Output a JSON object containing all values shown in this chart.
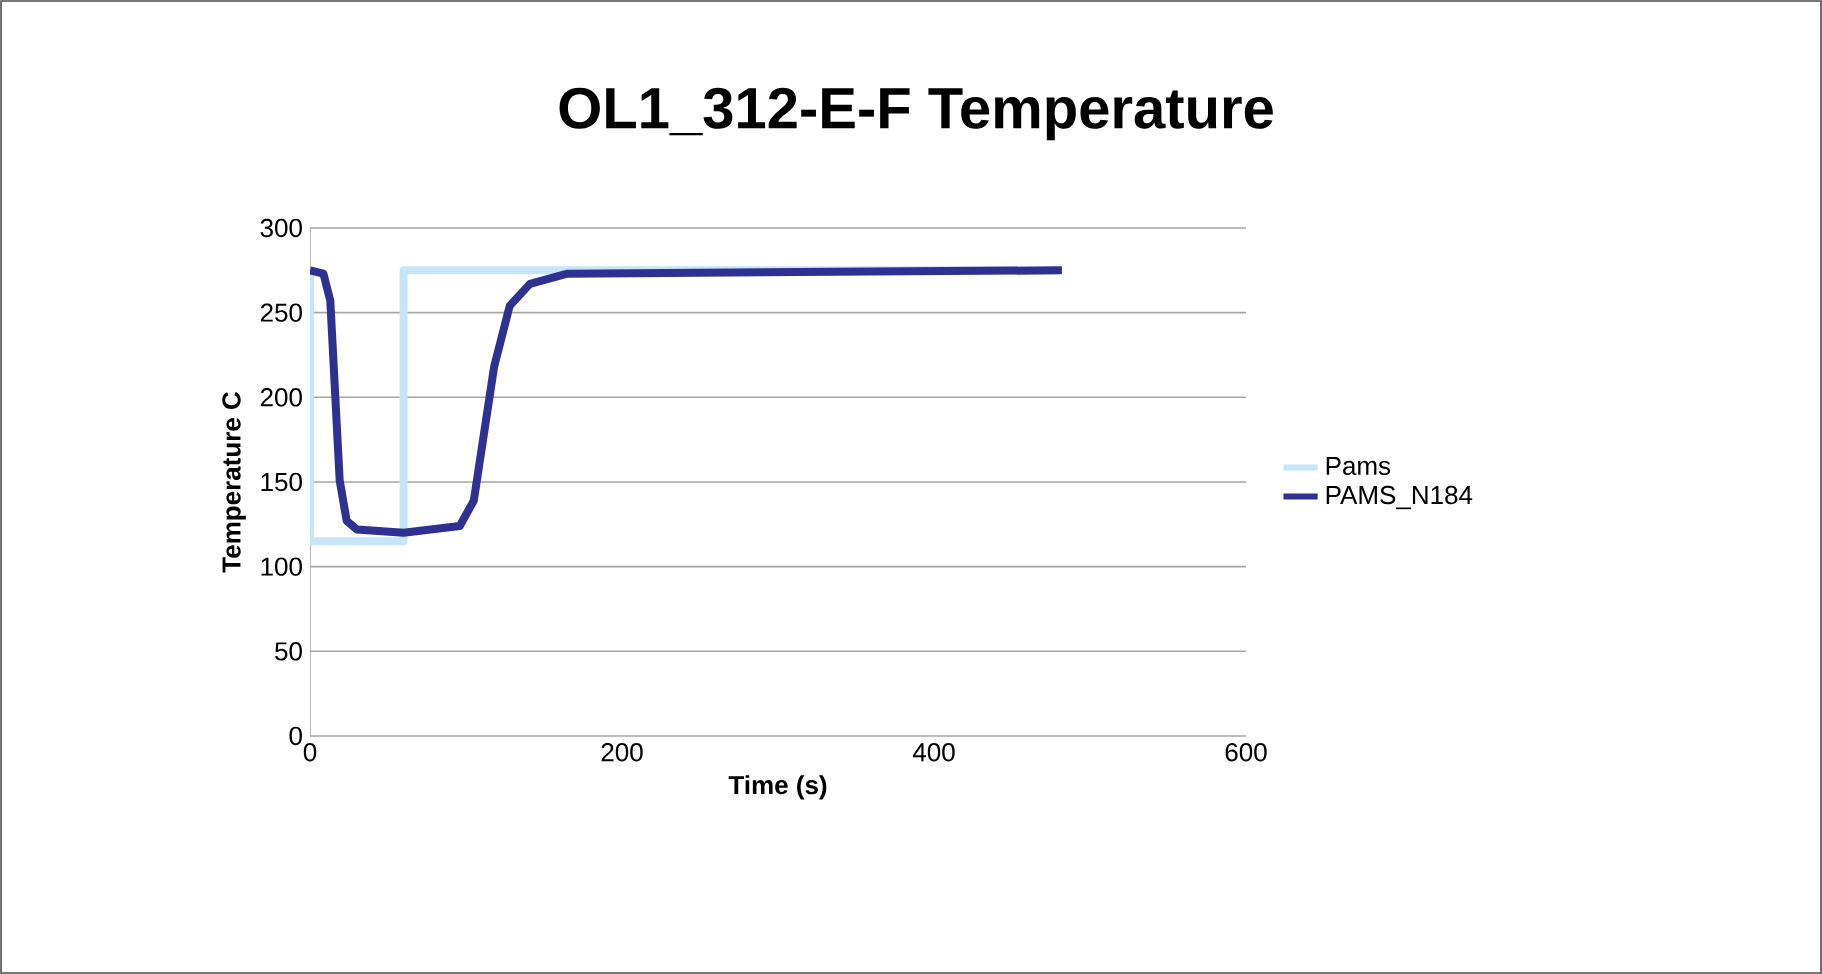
{
  "chart_data": {
    "type": "line",
    "title": "OL1_312-E-F Temperature",
    "xlabel": "Time (s)",
    "ylabel": "Temperature C",
    "xlim": [
      0,
      600
    ],
    "xticks": [
      0,
      200,
      400,
      600
    ],
    "ylim": [
      0,
      300
    ],
    "yticks": [
      0,
      50,
      100,
      150,
      200,
      250,
      300
    ],
    "grid": "y",
    "legend": "right",
    "series": [
      {
        "name": "Pams",
        "color": "#c6e6f8",
        "x": [
          0,
          0,
          60,
          60,
          480
        ],
        "values": [
          275,
          115,
          115,
          275,
          275
        ]
      },
      {
        "name": "PAMS_N184",
        "color": "#2e3192",
        "x": [
          0,
          8.6,
          13,
          19,
          23.5,
          30,
          60,
          96,
          105,
          118,
          128,
          141,
          165,
          482
        ],
        "values": [
          275,
          273,
          257,
          151,
          127,
          122,
          120,
          124,
          139,
          218,
          254,
          267,
          273,
          275
        ]
      }
    ]
  }
}
